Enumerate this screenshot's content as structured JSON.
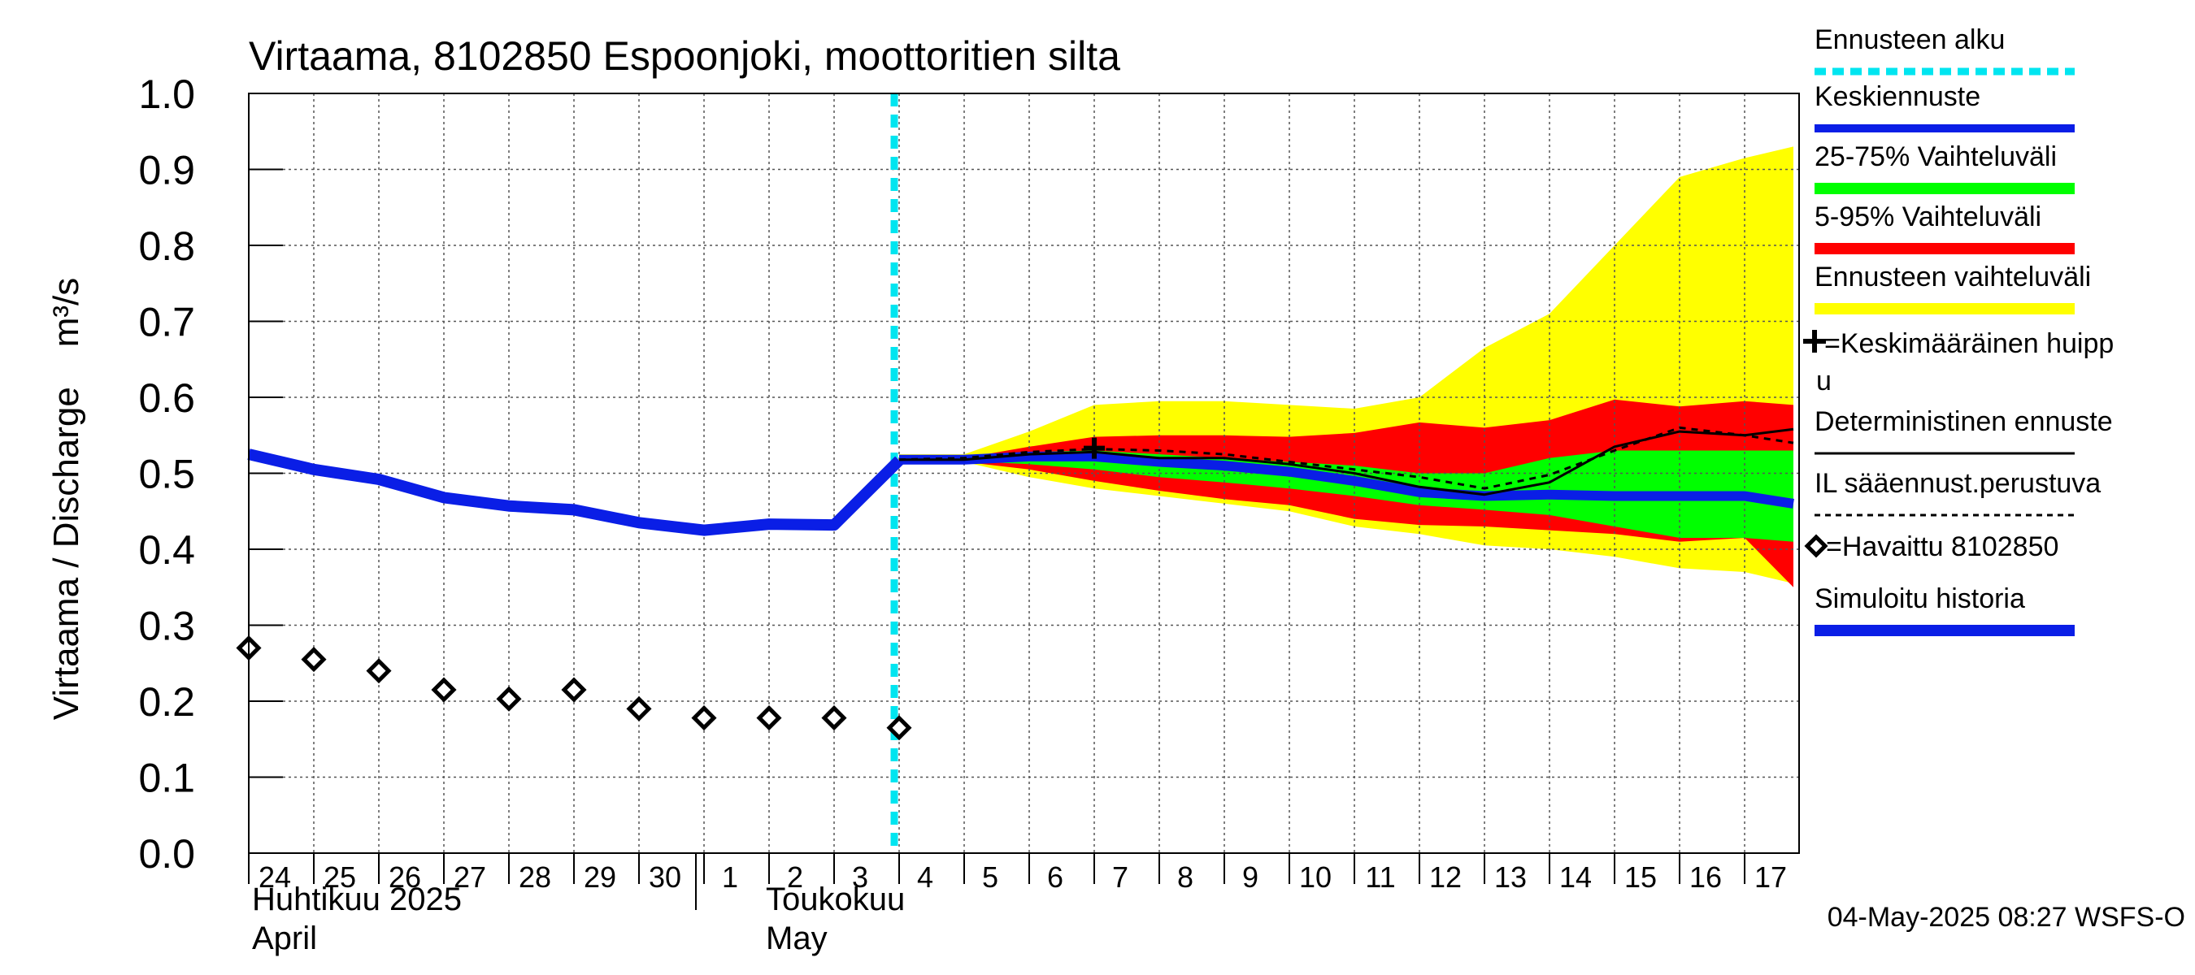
{
  "chart_data": {
    "type": "line",
    "title": "Virtaama, 8102850 Espoonjoki, moottoritien silta",
    "ylabel": "Virtaama / Discharge    m³/s",
    "ylim": [
      0,
      1.0
    ],
    "yticks": [
      "0.0",
      "0.1",
      "0.2",
      "0.3",
      "0.4",
      "0.5",
      "0.6",
      "0.7",
      "0.8",
      "0.9",
      "1.0"
    ],
    "x_start": "2025-04-24",
    "x_end": "2025-05-17",
    "forecast_start": "2025-05-04",
    "xtick_labels": [
      "24",
      "25",
      "26",
      "27",
      "28",
      "29",
      "30",
      "1",
      "2",
      "3",
      "4",
      "5",
      "6",
      "7",
      "8",
      "9",
      "10",
      "11",
      "12",
      "13",
      "14",
      "15",
      "16",
      "17"
    ],
    "month_labels": [
      {
        "fi": "Huhtikuu  2025",
        "en": "April"
      },
      {
        "fi": "Toukokuu",
        "en": "May"
      }
    ],
    "timestamp": "04-May-2025 08:27 WSFS-O",
    "legend": [
      {
        "label": "Ennusteen alku",
        "color": "#00e5f0",
        "style": "dotted"
      },
      {
        "label": "Keskiennuste",
        "color": "#0a1ee6",
        "style": "line"
      },
      {
        "label": "25-75% Vaihteluväli",
        "color": "#00ff00",
        "style": "bar"
      },
      {
        "label": "5-95% Vaihteluväli",
        "color": "#ff0000",
        "style": "bar"
      },
      {
        "label": "Ennusteen vaihteluväli",
        "color": "#ffff00",
        "style": "bar"
      },
      {
        "label": "=Keskimääräinen huipp",
        "label2": "u",
        "color": "#000000",
        "style": "plus"
      },
      {
        "label": "Deterministinen ennuste",
        "color": "#000000",
        "style": "thin"
      },
      {
        "label": "IL sääennust.perustuva",
        "color": "#000000",
        "style": "dashed"
      },
      {
        "label": "=Havaittu 8102850",
        "color": "#000000",
        "style": "diamond"
      },
      {
        "label": "Simuloitu historia",
        "color": "#0a1ee6",
        "style": "thick"
      }
    ],
    "series": [
      {
        "name": "Simuloitu historia",
        "color": "#0a1ee6",
        "x": [
          "2025-04-24",
          "2025-04-25",
          "2025-04-26",
          "2025-04-27",
          "2025-04-28",
          "2025-04-29",
          "2025-04-30",
          "2025-05-01",
          "2025-05-02",
          "2025-05-03",
          "2025-05-04"
        ],
        "values": [
          0.525,
          0.505,
          0.492,
          0.468,
          0.457,
          0.452,
          0.435,
          0.425,
          0.433,
          0.432,
          0.517
        ]
      },
      {
        "name": "Havaittu 8102850",
        "color": "#000000",
        "x": [
          "2025-04-24",
          "2025-04-25",
          "2025-04-26",
          "2025-04-27",
          "2025-04-28",
          "2025-04-29",
          "2025-04-30",
          "2025-05-01",
          "2025-05-02",
          "2025-05-03",
          "2025-05-04"
        ],
        "values": [
          0.27,
          0.255,
          0.24,
          0.215,
          0.203,
          0.215,
          0.19,
          0.178,
          0.178,
          0.178,
          0.165
        ]
      },
      {
        "name": "Ennusteen vaihteluväli",
        "color": "#ffff00",
        "x": [
          "2025-05-04",
          "2025-05-05",
          "2025-05-06",
          "2025-05-07",
          "2025-05-08",
          "2025-05-09",
          "2025-05-10",
          "2025-05-11",
          "2025-05-12",
          "2025-05-13",
          "2025-05-14",
          "2025-05-15",
          "2025-05-16",
          "2025-05-17",
          "2025-05-17T18"
        ],
        "upper": [
          0.525,
          0.525,
          0.555,
          0.59,
          0.595,
          0.595,
          0.59,
          0.585,
          0.6,
          0.665,
          0.71,
          0.8,
          0.89,
          0.915,
          0.93
        ],
        "lower": [
          0.515,
          0.515,
          0.495,
          0.48,
          0.47,
          0.46,
          0.45,
          0.43,
          0.42,
          0.405,
          0.4,
          0.39,
          0.375,
          0.37,
          0.355
        ]
      },
      {
        "name": "5-95% Vaihteluväli",
        "color": "#ff0000",
        "x": [
          "2025-05-04",
          "2025-05-05",
          "2025-05-06",
          "2025-05-07",
          "2025-05-08",
          "2025-05-09",
          "2025-05-10",
          "2025-05-11",
          "2025-05-12",
          "2025-05-13",
          "2025-05-14",
          "2025-05-15",
          "2025-05-16",
          "2025-05-17",
          "2025-05-17T18"
        ],
        "upper": [
          0.52,
          0.52,
          0.535,
          0.548,
          0.55,
          0.55,
          0.548,
          0.553,
          0.567,
          0.56,
          0.57,
          0.597,
          0.588,
          0.595,
          0.59
        ],
        "lower": [
          0.515,
          0.515,
          0.505,
          0.49,
          0.477,
          0.466,
          0.458,
          0.44,
          0.432,
          0.43,
          0.425,
          0.42,
          0.41,
          0.415,
          0.35
        ]
      },
      {
        "name": "25-75% Vaihteluväli",
        "color": "#00ff00",
        "x": [
          "2025-05-04",
          "2025-05-05",
          "2025-05-06",
          "2025-05-07",
          "2025-05-08",
          "2025-05-09",
          "2025-05-10",
          "2025-05-11",
          "2025-05-12",
          "2025-05-13",
          "2025-05-14",
          "2025-05-15",
          "2025-05-16",
          "2025-05-17",
          "2025-05-17T18"
        ],
        "upper": [
          0.518,
          0.518,
          0.528,
          0.53,
          0.525,
          0.52,
          0.515,
          0.51,
          0.5,
          0.5,
          0.52,
          0.53,
          0.53,
          0.53,
          0.53
        ],
        "lower": [
          0.516,
          0.516,
          0.512,
          0.505,
          0.495,
          0.488,
          0.48,
          0.47,
          0.458,
          0.452,
          0.445,
          0.43,
          0.415,
          0.415,
          0.41
        ]
      },
      {
        "name": "Keskiennuste",
        "color": "#0a1ee6",
        "x": [
          "2025-05-04",
          "2025-05-05",
          "2025-05-06",
          "2025-05-07",
          "2025-05-08",
          "2025-05-09",
          "2025-05-10",
          "2025-05-11",
          "2025-05-12",
          "2025-05-13",
          "2025-05-14",
          "2025-05-15",
          "2025-05-16",
          "2025-05-17",
          "2025-05-17T18"
        ],
        "values": [
          0.518,
          0.518,
          0.522,
          0.522,
          0.515,
          0.51,
          0.502,
          0.49,
          0.475,
          0.47,
          0.472,
          0.47,
          0.47,
          0.47,
          0.46
        ]
      },
      {
        "name": "Deterministinen ennuste",
        "color": "#000000",
        "x": [
          "2025-05-04",
          "2025-05-05",
          "2025-05-06",
          "2025-05-07",
          "2025-05-08",
          "2025-05-09",
          "2025-05-10",
          "2025-05-11",
          "2025-05-12",
          "2025-05-13",
          "2025-05-14",
          "2025-05-15",
          "2025-05-16",
          "2025-05-17",
          "2025-05-17T18"
        ],
        "values": [
          0.518,
          0.518,
          0.525,
          0.528,
          0.52,
          0.52,
          0.512,
          0.5,
          0.482,
          0.472,
          0.488,
          0.535,
          0.555,
          0.55,
          0.558
        ]
      },
      {
        "name": "IL sääennust.perustuva",
        "color": "#000000",
        "x": [
          "2025-05-04",
          "2025-05-05",
          "2025-05-06",
          "2025-05-07",
          "2025-05-08",
          "2025-05-09",
          "2025-05-10",
          "2025-05-11",
          "2025-05-12",
          "2025-05-13",
          "2025-05-14",
          "2025-05-15",
          "2025-05-16",
          "2025-05-17",
          "2025-05-17T18"
        ],
        "values": [
          0.518,
          0.52,
          0.528,
          0.532,
          0.53,
          0.525,
          0.515,
          0.505,
          0.495,
          0.48,
          0.498,
          0.53,
          0.56,
          0.55,
          0.54
        ]
      }
    ],
    "peak_marker": {
      "x": "2025-05-07",
      "value": 0.533
    }
  }
}
